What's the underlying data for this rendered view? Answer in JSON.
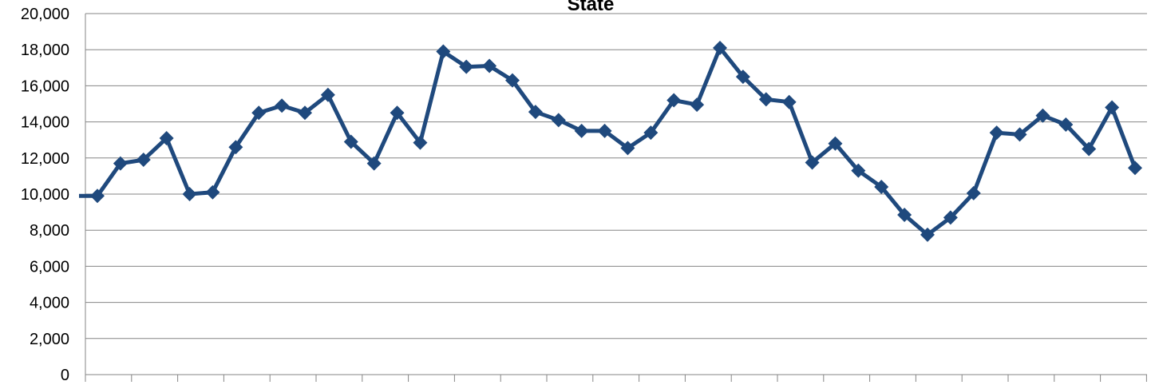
{
  "chart_data": {
    "type": "line",
    "title": "State",
    "xlabel": "",
    "ylabel": "",
    "ylim": [
      0,
      20000
    ],
    "y_ticks": [
      0,
      2000,
      4000,
      6000,
      8000,
      10000,
      12000,
      14000,
      16000,
      18000,
      20000
    ],
    "y_tick_labels": [
      "0",
      "2,000",
      "4,000",
      "6,000",
      "8,000",
      "10,000",
      "12,000",
      "14,000",
      "16,000",
      "18,000",
      "20,000"
    ],
    "grid": true,
    "legend": "none",
    "series": [
      {
        "color": "#1f497d",
        "marker": "diamond",
        "values": [
          9900,
          11700,
          11900,
          13100,
          10000,
          10100,
          12600,
          14500,
          14900,
          14500,
          15500,
          12900,
          11700,
          14500,
          12850,
          17900,
          17050,
          17100,
          16300,
          14550,
          14100,
          13500,
          13500,
          12550,
          13400,
          15200,
          14950,
          18100,
          16500,
          15250,
          15100,
          11750,
          12800,
          11300,
          10400,
          8850,
          7750,
          8700,
          10050,
          13400,
          13300,
          14350,
          13850,
          12500,
          14800,
          11450
        ]
      }
    ]
  }
}
